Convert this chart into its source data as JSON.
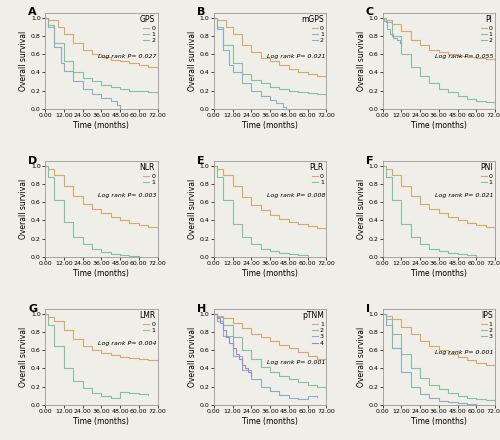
{
  "panels": [
    {
      "label": "A",
      "title": "GPS",
      "pvalue": "Log rank P= 0.027",
      "legend_labels": [
        "0",
        "1",
        "2"
      ],
      "colors": [
        "#D4A96A",
        "#7DC4A0",
        "#8BAEC8"
      ],
      "curves": [
        {
          "times": [
            0,
            2,
            8,
            12,
            18,
            24,
            30,
            36,
            42,
            48,
            54,
            60,
            66,
            72
          ],
          "surv": [
            1.0,
            0.97,
            0.9,
            0.82,
            0.72,
            0.65,
            0.6,
            0.57,
            0.54,
            0.52,
            0.5,
            0.48,
            0.46,
            0.44
          ]
        },
        {
          "times": [
            0,
            2,
            6,
            12,
            18,
            24,
            30,
            36,
            42,
            48,
            54,
            60,
            66,
            72
          ],
          "surv": [
            1.0,
            0.92,
            0.72,
            0.52,
            0.4,
            0.34,
            0.3,
            0.26,
            0.24,
            0.22,
            0.2,
            0.19,
            0.18,
            0.17
          ]
        },
        {
          "times": [
            0,
            2,
            6,
            10,
            12,
            18,
            24,
            30,
            36,
            42,
            46,
            48
          ],
          "surv": [
            1.0,
            0.9,
            0.68,
            0.5,
            0.42,
            0.3,
            0.22,
            0.16,
            0.12,
            0.08,
            0.04,
            0.0
          ]
        }
      ]
    },
    {
      "label": "B",
      "title": "mGPS",
      "pvalue": "Log rank P= 0.021",
      "legend_labels": [
        "0",
        "1",
        "2"
      ],
      "colors": [
        "#D4A96A",
        "#7DC4A0",
        "#8BAEC8"
      ],
      "curves": [
        {
          "times": [
            0,
            2,
            8,
            12,
            18,
            24,
            30,
            36,
            42,
            48,
            54,
            60,
            66,
            72
          ],
          "surv": [
            1.0,
            0.97,
            0.9,
            0.82,
            0.7,
            0.62,
            0.56,
            0.52,
            0.48,
            0.44,
            0.4,
            0.38,
            0.36,
            0.34
          ]
        },
        {
          "times": [
            0,
            2,
            6,
            12,
            18,
            24,
            30,
            36,
            42,
            48,
            54,
            60,
            66,
            72
          ],
          "surv": [
            1.0,
            0.9,
            0.7,
            0.5,
            0.38,
            0.32,
            0.28,
            0.24,
            0.22,
            0.2,
            0.18,
            0.17,
            0.16,
            0.15
          ]
        },
        {
          "times": [
            0,
            2,
            6,
            10,
            12,
            18,
            24,
            30,
            36,
            40,
            44,
            46
          ],
          "surv": [
            1.0,
            0.88,
            0.65,
            0.48,
            0.4,
            0.28,
            0.2,
            0.14,
            0.1,
            0.06,
            0.02,
            0.0
          ]
        }
      ]
    },
    {
      "label": "C",
      "title": "PI",
      "pvalue": "Log rank P= 0.055",
      "legend_labels": [
        "0",
        "1",
        "2"
      ],
      "colors": [
        "#D4A96A",
        "#7DC4A0",
        "#8BAEC8"
      ],
      "curves": [
        {
          "times": [
            0,
            2,
            6,
            12,
            18,
            24,
            30,
            36,
            42,
            48,
            54,
            60,
            66,
            72
          ],
          "surv": [
            1.0,
            0.98,
            0.93,
            0.85,
            0.76,
            0.7,
            0.65,
            0.62,
            0.6,
            0.58,
            0.57,
            0.56,
            0.55,
            0.54
          ]
        },
        {
          "times": [
            0,
            2,
            6,
            12,
            18,
            24,
            30,
            36,
            42,
            48,
            54,
            60,
            66,
            72
          ],
          "surv": [
            1.0,
            0.95,
            0.8,
            0.6,
            0.46,
            0.36,
            0.28,
            0.22,
            0.18,
            0.14,
            0.11,
            0.09,
            0.07,
            0.06
          ]
        },
        {
          "times": [
            0,
            1,
            3,
            5,
            7,
            9,
            11,
            12
          ],
          "surv": [
            1.0,
            0.96,
            0.88,
            0.82,
            0.78,
            0.75,
            0.72,
            0.7
          ]
        }
      ]
    },
    {
      "label": "D",
      "title": "NLR",
      "pvalue": "Log rank P= 0.003",
      "legend_labels": [
        "0",
        "1"
      ],
      "colors": [
        "#D4A96A",
        "#7DC4A0"
      ],
      "curves": [
        {
          "times": [
            0,
            2,
            6,
            12,
            18,
            24,
            30,
            36,
            42,
            48,
            54,
            60,
            66,
            72
          ],
          "surv": [
            1.0,
            0.97,
            0.9,
            0.78,
            0.67,
            0.58,
            0.52,
            0.48,
            0.44,
            0.4,
            0.37,
            0.35,
            0.33,
            0.31
          ]
        },
        {
          "times": [
            0,
            2,
            6,
            12,
            18,
            24,
            30,
            36,
            42,
            48,
            54,
            60
          ],
          "surv": [
            1.0,
            0.88,
            0.62,
            0.38,
            0.22,
            0.14,
            0.08,
            0.05,
            0.03,
            0.02,
            0.01,
            0.01
          ]
        }
      ]
    },
    {
      "label": "E",
      "title": "PLR",
      "pvalue": "Log rank P= 0.008",
      "legend_labels": [
        "0",
        "1"
      ],
      "colors": [
        "#D4A96A",
        "#7DC4A0"
      ],
      "curves": [
        {
          "times": [
            0,
            2,
            6,
            12,
            18,
            24,
            30,
            36,
            42,
            48,
            54,
            60,
            66,
            72
          ],
          "surv": [
            1.0,
            0.97,
            0.9,
            0.78,
            0.66,
            0.57,
            0.51,
            0.46,
            0.42,
            0.38,
            0.36,
            0.34,
            0.32,
            0.3
          ]
        },
        {
          "times": [
            0,
            2,
            6,
            12,
            18,
            24,
            30,
            36,
            42,
            48,
            54,
            60
          ],
          "surv": [
            1.0,
            0.88,
            0.62,
            0.36,
            0.22,
            0.14,
            0.09,
            0.06,
            0.04,
            0.03,
            0.02,
            0.01
          ]
        }
      ]
    },
    {
      "label": "F",
      "title": "PNI",
      "pvalue": "Log rank P= 0.021",
      "legend_labels": [
        "0",
        "1"
      ],
      "colors": [
        "#D4A96A",
        "#7DC4A0"
      ],
      "curves": [
        {
          "times": [
            0,
            2,
            6,
            12,
            18,
            24,
            30,
            36,
            42,
            48,
            54,
            60,
            66,
            72
          ],
          "surv": [
            1.0,
            0.97,
            0.9,
            0.78,
            0.67,
            0.58,
            0.52,
            0.48,
            0.44,
            0.4,
            0.37,
            0.35,
            0.33,
            0.31
          ]
        },
        {
          "times": [
            0,
            2,
            6,
            12,
            18,
            24,
            30,
            36,
            42,
            48,
            54,
            60
          ],
          "surv": [
            1.0,
            0.88,
            0.62,
            0.36,
            0.22,
            0.14,
            0.09,
            0.06,
            0.04,
            0.03,
            0.02,
            0.01
          ]
        }
      ]
    },
    {
      "label": "G",
      "title": "LMR",
      "pvalue": "Log rank P= 0.004",
      "legend_labels": [
        "0",
        "1"
      ],
      "colors": [
        "#D4A96A",
        "#7DC4A0"
      ],
      "curves": [
        {
          "times": [
            0,
            2,
            6,
            12,
            18,
            24,
            30,
            36,
            42,
            48,
            54,
            60,
            66,
            72
          ],
          "surv": [
            1.0,
            0.97,
            0.92,
            0.82,
            0.72,
            0.65,
            0.6,
            0.57,
            0.55,
            0.53,
            0.51,
            0.5,
            0.49,
            0.48
          ]
        },
        {
          "times": [
            0,
            2,
            6,
            12,
            18,
            24,
            30,
            36,
            42,
            48,
            54,
            60,
            66
          ],
          "surv": [
            1.0,
            0.88,
            0.65,
            0.4,
            0.26,
            0.18,
            0.13,
            0.1,
            0.08,
            0.14,
            0.13,
            0.12,
            0.11
          ]
        }
      ]
    },
    {
      "label": "H",
      "title": "pTNM",
      "pvalue": "Log rank P= 0.001",
      "legend_labels": [
        "1",
        "2",
        "3",
        "4"
      ],
      "colors": [
        "#D4A96A",
        "#7DC4A0",
        "#8BAEC8",
        "#9B8DC0"
      ],
      "curves": [
        {
          "times": [
            0,
            2,
            6,
            12,
            18,
            24,
            30,
            36,
            42,
            48,
            54,
            60,
            66,
            72
          ],
          "surv": [
            1.0,
            0.98,
            0.95,
            0.9,
            0.84,
            0.78,
            0.74,
            0.7,
            0.66,
            0.62,
            0.58,
            0.54,
            0.5,
            0.47
          ]
        },
        {
          "times": [
            0,
            2,
            6,
            12,
            18,
            24,
            30,
            36,
            42,
            48,
            54,
            60,
            66,
            72
          ],
          "surv": [
            1.0,
            0.96,
            0.88,
            0.74,
            0.6,
            0.5,
            0.42,
            0.36,
            0.32,
            0.28,
            0.25,
            0.22,
            0.2,
            0.18
          ]
        },
        {
          "times": [
            0,
            2,
            6,
            12,
            18,
            24,
            30,
            36,
            42,
            48,
            54,
            60,
            66
          ],
          "surv": [
            1.0,
            0.92,
            0.76,
            0.54,
            0.38,
            0.28,
            0.2,
            0.15,
            0.11,
            0.08,
            0.06,
            0.1,
            0.09
          ]
        },
        {
          "times": [
            0,
            2,
            4,
            6,
            8,
            10,
            12,
            14,
            16,
            18,
            20,
            22,
            24
          ],
          "surv": [
            1.0,
            0.95,
            0.9,
            0.82,
            0.75,
            0.68,
            0.62,
            0.56,
            0.5,
            0.44,
            0.4,
            0.36,
            0.32
          ]
        }
      ]
    },
    {
      "label": "I",
      "title": "IPS",
      "pvalue": "Log rank P= 0.001",
      "legend_labels": [
        "1",
        "2",
        "3"
      ],
      "colors": [
        "#D4A96A",
        "#7DC4A0",
        "#8BAEC8"
      ],
      "curves": [
        {
          "times": [
            0,
            2,
            6,
            12,
            18,
            24,
            30,
            36,
            42,
            48,
            54,
            60,
            66,
            72
          ],
          "surv": [
            1.0,
            0.98,
            0.94,
            0.86,
            0.78,
            0.7,
            0.65,
            0.6,
            0.56,
            0.52,
            0.49,
            0.46,
            0.44,
            0.42
          ]
        },
        {
          "times": [
            0,
            2,
            6,
            12,
            18,
            24,
            30,
            36,
            42,
            48,
            54,
            60,
            66,
            72
          ],
          "surv": [
            1.0,
            0.94,
            0.78,
            0.56,
            0.4,
            0.3,
            0.22,
            0.17,
            0.13,
            0.1,
            0.08,
            0.06,
            0.05,
            0.04
          ]
        },
        {
          "times": [
            0,
            2,
            6,
            12,
            18,
            24,
            30,
            36,
            42,
            48,
            54,
            60
          ],
          "surv": [
            1.0,
            0.88,
            0.62,
            0.36,
            0.2,
            0.12,
            0.07,
            0.04,
            0.03,
            0.02,
            0.01,
            0.01
          ]
        }
      ]
    }
  ],
  "xlim": [
    0,
    72
  ],
  "xticks": [
    0,
    12,
    24,
    36,
    48,
    60,
    72
  ],
  "xtick_labels": [
    "0.00",
    "12.00",
    "24.00",
    "36.00",
    "48.00",
    "60.00",
    "72.00"
  ],
  "ylim": [
    0.0,
    1.05
  ],
  "yticks": [
    0.0,
    0.2,
    0.4,
    0.6,
    0.8,
    1.0
  ],
  "ytick_labels": [
    "0.0*",
    "0.2*",
    "0.4*",
    "0.6*",
    "0.8*",
    "1.0*"
  ],
  "xlabel": "Time (months)",
  "ylabel": "Overall survival",
  "tick_fontsize": 4.5,
  "label_fontsize": 5.5,
  "legend_fontsize": 4.5,
  "pvalue_fontsize": 4.5,
  "title_fontsize": 5.5,
  "linewidth": 0.8,
  "bg_color": "#F0EEE8"
}
